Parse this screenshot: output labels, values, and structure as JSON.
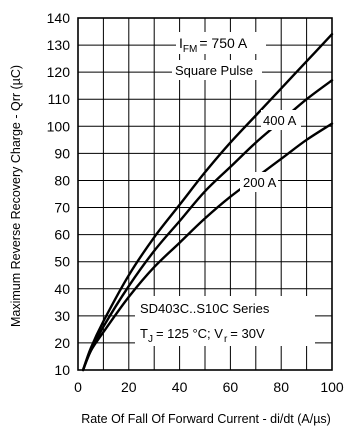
{
  "chart_data": {
    "type": "line",
    "title": "",
    "xlabel": "Rate Of Fall Of Forward Current - di/dt (A/µs)",
    "ylabel": "Maximum Reverse Recovery Charge - Qrr (µC)",
    "xlim": [
      0,
      100
    ],
    "ylim": [
      10,
      140
    ],
    "x_ticks": [
      0,
      20,
      40,
      60,
      80,
      100
    ],
    "y_ticks": [
      10,
      20,
      30,
      40,
      50,
      60,
      70,
      80,
      90,
      100,
      110,
      120,
      130,
      140
    ],
    "grid": true,
    "annotations": {
      "param_sub": "FM",
      "param_value": "= 750 A",
      "pulse": "Square Pulse",
      "series_line": "SD403C..S10C Series",
      "tj_sub": "J",
      "tj_value": "= 125 °C; V",
      "vr_sub": "r",
      "vr_value": "= 30V"
    },
    "series": [
      {
        "name": "750 A",
        "x": [
          2,
          5,
          10,
          20,
          30,
          40,
          50,
          60,
          70,
          80,
          90,
          100
        ],
        "y": [
          10,
          18,
          28,
          45,
          59,
          71,
          83,
          94,
          104,
          114,
          124,
          134
        ]
      },
      {
        "name": "400 A",
        "x": [
          2,
          5,
          10,
          20,
          30,
          40,
          50,
          60,
          70,
          80,
          90,
          100
        ],
        "y": [
          10,
          17,
          26,
          41,
          54,
          65,
          76,
          85,
          94,
          102,
          110,
          117
        ]
      },
      {
        "name": "200 A",
        "x": [
          2,
          5,
          10,
          20,
          30,
          40,
          50,
          60,
          70,
          80,
          90,
          100
        ],
        "y": [
          10,
          17,
          24,
          37,
          48,
          57,
          66,
          74,
          81,
          88,
          95,
          101
        ]
      }
    ]
  }
}
